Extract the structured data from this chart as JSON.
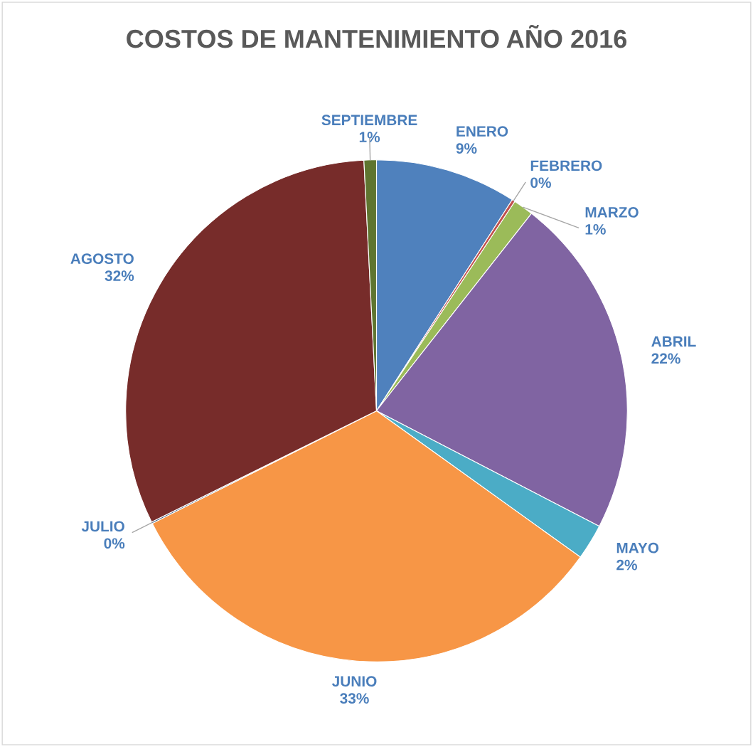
{
  "chart_data": {
    "type": "pie",
    "title": "COSTOS DE MANTENIMIENTO AÑO 2016",
    "categories": [
      "ENERO",
      "FEBRERO",
      "MARZO",
      "ABRIL",
      "MAYO",
      "JUNIO",
      "JULIO",
      "AGOSTO",
      "SEPTIEMBRE"
    ],
    "values": [
      9.1,
      0.2,
      1.3,
      22.0,
      2.3,
      32.7,
      0.1,
      31.5,
      0.8
    ],
    "value_labels": [
      "9%",
      "0%",
      "1%",
      "22%",
      "2%",
      "33%",
      "0%",
      "32%",
      "1%"
    ],
    "colors": [
      "#4f81bd",
      "#c0504d",
      "#9bbb59",
      "#8064a2",
      "#4bacc6",
      "#f79646",
      "#2c4d75",
      "#772c2a",
      "#5f7530"
    ],
    "legend": false
  }
}
